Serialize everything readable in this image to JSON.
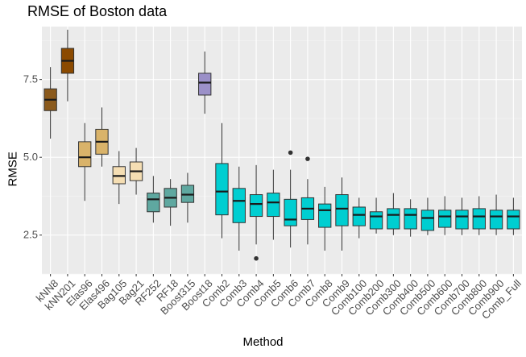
{
  "chart_data": {
    "type": "boxplot",
    "title": "RMSE of Boston data",
    "xlabel": "Method",
    "ylabel": "RMSE",
    "ylim": [
      1.25,
      9.2
    ],
    "yticks": [
      2.5,
      5.0,
      7.5
    ],
    "ytick_labels": [
      "2.5",
      "5.0",
      "7.5"
    ],
    "grid": true,
    "legend": "none",
    "categories": [
      "kNN8",
      "kNN201",
      "Elas96",
      "Elas496",
      "Bag105",
      "Bag21",
      "RF252",
      "RF18",
      "Boost315",
      "Boost18",
      "Comb2",
      "Comb3",
      "Comb4",
      "Comb5",
      "Comb6",
      "Comb7",
      "Comb8",
      "Comb9",
      "Comb100",
      "Comb200",
      "Comb300",
      "Comb400",
      "Comb500",
      "Comb600",
      "Comb700",
      "Comb800",
      "Comb900",
      "Comb_Full"
    ],
    "colors": [
      "#8B5A1C",
      "#8B4A00",
      "#D9B36A",
      "#D9B36A",
      "#F5DEB3",
      "#F5DEB3",
      "#5FA8A0",
      "#5FA8A0",
      "#5FA8A0",
      "#9B90C8",
      "#00CED1",
      "#00CED1",
      "#00CED1",
      "#00CED1",
      "#00CED1",
      "#00CED1",
      "#00CED1",
      "#00CED1",
      "#00CED1",
      "#00CED1",
      "#00CED1",
      "#00CED1",
      "#00CED1",
      "#00CED1",
      "#00CED1",
      "#00CED1",
      "#00CED1",
      "#00CED1"
    ],
    "boxes": [
      {
        "min": 5.6,
        "q1": 6.5,
        "median": 6.85,
        "q3": 7.2,
        "max": 7.9,
        "outliers": []
      },
      {
        "min": 6.8,
        "q1": 7.7,
        "median": 8.1,
        "q3": 8.5,
        "max": 9.1,
        "outliers": []
      },
      {
        "min": 3.6,
        "q1": 4.7,
        "median": 5.0,
        "q3": 5.5,
        "max": 6.1,
        "outliers": []
      },
      {
        "min": 4.7,
        "q1": 5.1,
        "median": 5.5,
        "q3": 5.9,
        "max": 6.6,
        "outliers": []
      },
      {
        "min": 3.5,
        "q1": 4.15,
        "median": 4.4,
        "q3": 4.7,
        "max": 5.2,
        "outliers": []
      },
      {
        "min": 3.8,
        "q1": 4.25,
        "median": 4.55,
        "q3": 4.85,
        "max": 5.3,
        "outliers": []
      },
      {
        "min": 2.9,
        "q1": 3.25,
        "median": 3.65,
        "q3": 3.85,
        "max": 4.4,
        "outliers": []
      },
      {
        "min": 2.8,
        "q1": 3.4,
        "median": 3.7,
        "q3": 4.0,
        "max": 4.3,
        "outliers": []
      },
      {
        "min": 2.9,
        "q1": 3.55,
        "median": 3.8,
        "q3": 4.1,
        "max": 4.5,
        "outliers": []
      },
      {
        "min": 6.4,
        "q1": 7.0,
        "median": 7.4,
        "q3": 7.7,
        "max": 8.4,
        "outliers": []
      },
      {
        "min": 2.4,
        "q1": 3.15,
        "median": 3.9,
        "q3": 4.8,
        "max": 6.1,
        "outliers": []
      },
      {
        "min": 2.0,
        "q1": 2.9,
        "median": 3.6,
        "q3": 4.0,
        "max": 4.7,
        "outliers": []
      },
      {
        "min": 2.2,
        "q1": 3.1,
        "median": 3.5,
        "q3": 3.8,
        "max": 4.75,
        "outliers": [
          1.75
        ]
      },
      {
        "min": 2.35,
        "q1": 3.1,
        "median": 3.55,
        "q3": 3.85,
        "max": 4.6,
        "outliers": []
      },
      {
        "min": 2.1,
        "q1": 2.8,
        "median": 3.0,
        "q3": 3.65,
        "max": 4.6,
        "outliers": [
          5.15
        ]
      },
      {
        "min": 2.2,
        "q1": 3.0,
        "median": 3.35,
        "q3": 3.7,
        "max": 4.3,
        "outliers": [
          4.95
        ]
      },
      {
        "min": 2.0,
        "q1": 2.75,
        "median": 3.3,
        "q3": 3.5,
        "max": 4.05,
        "outliers": []
      },
      {
        "min": 2.0,
        "q1": 2.8,
        "median": 3.35,
        "q3": 3.8,
        "max": 4.35,
        "outliers": []
      },
      {
        "min": 2.4,
        "q1": 2.8,
        "median": 3.15,
        "q3": 3.4,
        "max": 3.7,
        "outliers": []
      },
      {
        "min": 2.55,
        "q1": 2.7,
        "median": 3.1,
        "q3": 3.25,
        "max": 3.7,
        "outliers": []
      },
      {
        "min": 2.5,
        "q1": 2.7,
        "median": 3.15,
        "q3": 3.35,
        "max": 3.85,
        "outliers": []
      },
      {
        "min": 2.45,
        "q1": 2.7,
        "median": 3.15,
        "q3": 3.35,
        "max": 3.65,
        "outliers": []
      },
      {
        "min": 2.5,
        "q1": 2.65,
        "median": 3.05,
        "q3": 3.3,
        "max": 3.7,
        "outliers": []
      },
      {
        "min": 2.5,
        "q1": 2.75,
        "median": 3.1,
        "q3": 3.3,
        "max": 3.75,
        "outliers": []
      },
      {
        "min": 2.5,
        "q1": 2.7,
        "median": 3.1,
        "q3": 3.3,
        "max": 3.7,
        "outliers": []
      },
      {
        "min": 2.5,
        "q1": 2.7,
        "median": 3.1,
        "q3": 3.35,
        "max": 3.75,
        "outliers": []
      },
      {
        "min": 2.5,
        "q1": 2.7,
        "median": 3.1,
        "q3": 3.3,
        "max": 3.8,
        "outliers": []
      },
      {
        "min": 2.5,
        "q1": 2.7,
        "median": 3.1,
        "q3": 3.3,
        "max": 3.7,
        "outliers": []
      }
    ]
  }
}
